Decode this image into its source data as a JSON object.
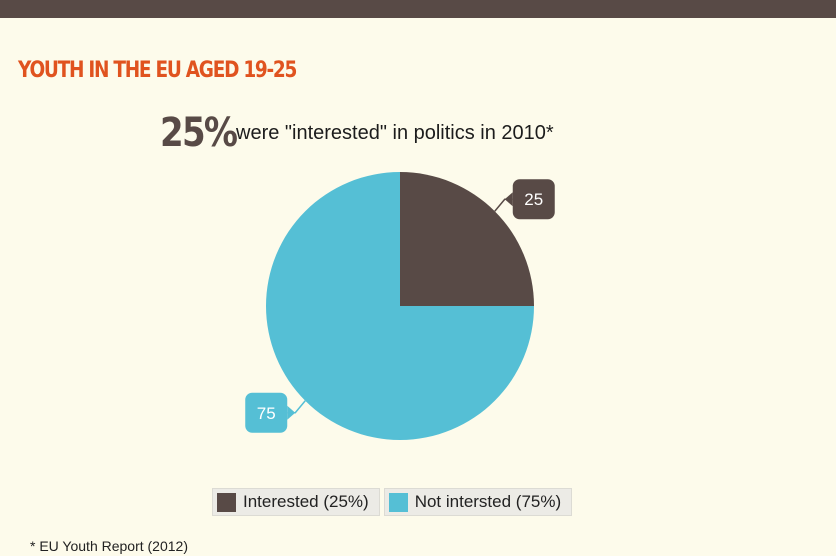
{
  "header": {
    "title": "YOUTH IN THE EU AGED 19-25",
    "headline_value": "25%",
    "headline_text": "were \"interested\" in politics in 2010*"
  },
  "footnote": "* EU Youth Report (2012)",
  "colors": {
    "interested": "#584a46",
    "not_interested": "#55bfd5",
    "title": "#e0531f",
    "background": "#fdfbeb"
  },
  "chart_data": {
    "type": "pie",
    "slices": [
      {
        "label": "Interested (25%)",
        "value": 25,
        "data_label": "25",
        "color": "#584a46"
      },
      {
        "label": "Not intersted (75%)",
        "value": 75,
        "data_label": "75",
        "color": "#55bfd5"
      }
    ],
    "legend_position": "bottom"
  }
}
